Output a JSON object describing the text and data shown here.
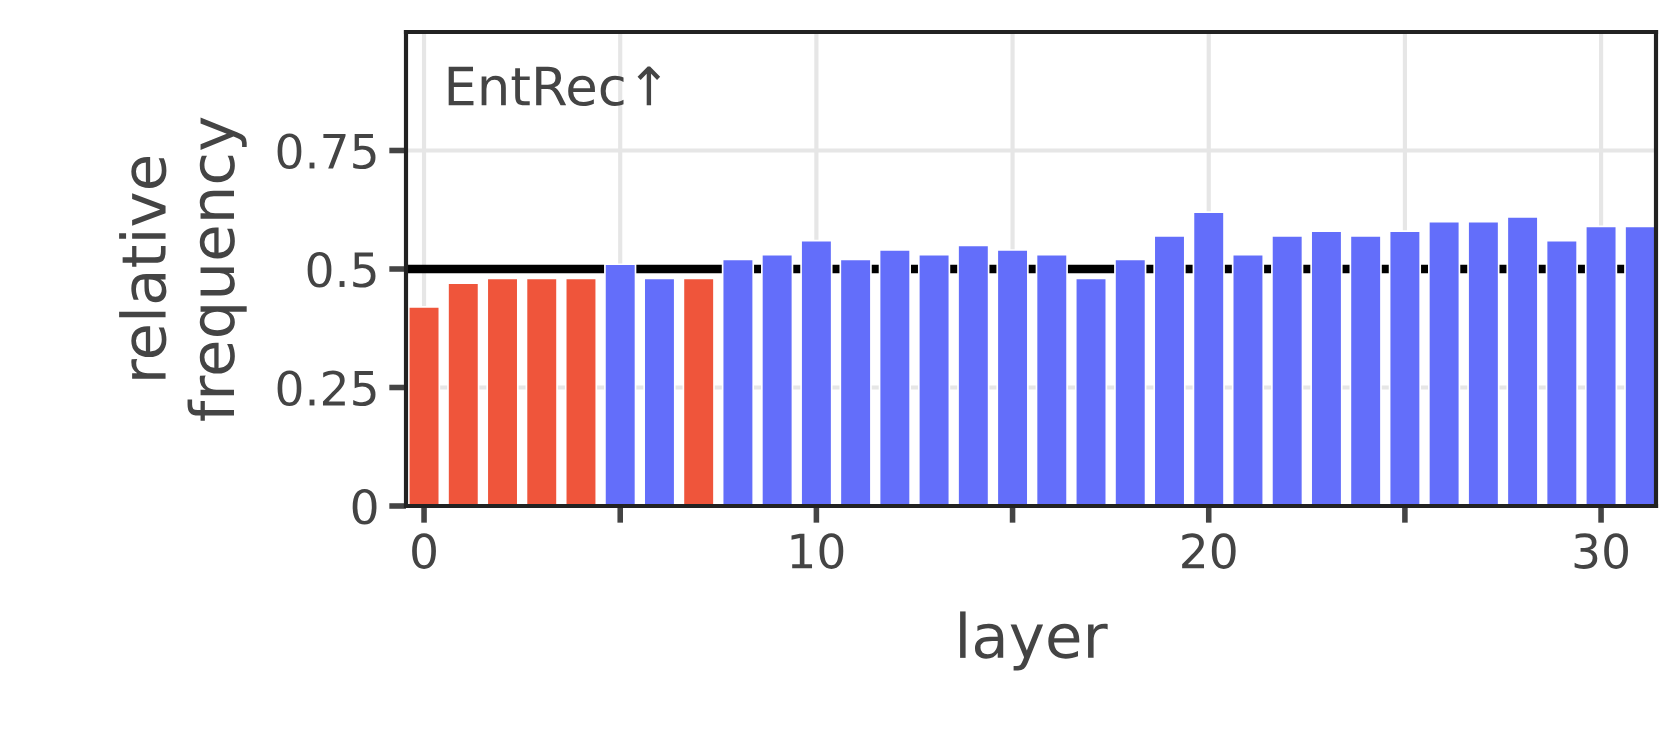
{
  "chart_data": {
    "type": "bar",
    "xlabel": "layer",
    "ylabel": "relative\nfrequency",
    "annotations": [
      "EntRec↑"
    ],
    "x": [
      0,
      1,
      2,
      3,
      4,
      5,
      6,
      7,
      8,
      9,
      10,
      11,
      12,
      13,
      14,
      15,
      16,
      17,
      18,
      19,
      20,
      21,
      22,
      23,
      24,
      25,
      26,
      27,
      28,
      29,
      30,
      31
    ],
    "values": [
      0.42,
      0.47,
      0.48,
      0.48,
      0.48,
      0.51,
      0.48,
      0.48,
      0.52,
      0.53,
      0.56,
      0.52,
      0.54,
      0.53,
      0.55,
      0.54,
      0.53,
      0.48,
      0.52,
      0.57,
      0.62,
      0.53,
      0.57,
      0.58,
      0.57,
      0.58,
      0.6,
      0.6,
      0.61,
      0.56,
      0.59,
      0.59
    ],
    "colors": [
      "#ef553b",
      "#ef553b",
      "#ef553b",
      "#ef553b",
      "#ef553b",
      "#636efa",
      "#636efa",
      "#ef553b",
      "#636efa",
      "#636efa",
      "#636efa",
      "#636efa",
      "#636efa",
      "#636efa",
      "#636efa",
      "#636efa",
      "#636efa",
      "#636efa",
      "#636efa",
      "#636efa",
      "#636efa",
      "#636efa",
      "#636efa",
      "#636efa",
      "#636efa",
      "#636efa",
      "#636efa",
      "#636efa",
      "#636efa",
      "#636efa",
      "#636efa",
      "#636efa"
    ],
    "xlim": [
      -0.46,
      31.4
    ],
    "xticks": [
      0,
      {
        "value": 5,
        "label": null
      },
      10,
      {
        "value": 15,
        "label": null
      },
      20,
      {
        "value": 25,
        "label": null
      },
      30
    ],
    "ylim": [
      0,
      1
    ],
    "yticks": [
      0,
      0.25,
      0.5,
      0.75
    ],
    "grid": true,
    "ref_lines": [
      {
        "axis": "y",
        "value": 0.5,
        "color": "#000000"
      }
    ]
  }
}
